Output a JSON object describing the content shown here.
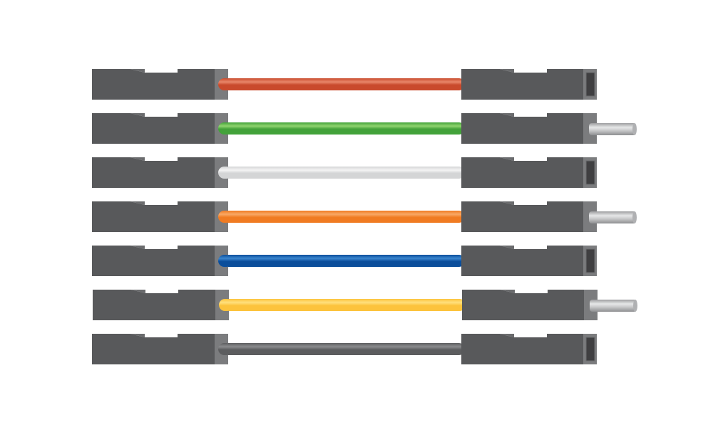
{
  "colors": {
    "housing": "#58595b",
    "cap": "#7b7c7e",
    "socket": "#3f3f41",
    "pin": "#c4c5c7"
  },
  "jumpers": [
    {
      "wire_color": "#c94a2c",
      "highlight": "#e8876a",
      "left_end": "female",
      "right_end": "female"
    },
    {
      "wire_color": "#43a23a",
      "highlight": "#8fd46e",
      "left_end": "female",
      "right_end": "male"
    },
    {
      "wire_color": "#d4d5d6",
      "highlight": "#f4f4f4",
      "left_end": "female",
      "right_end": "female"
    },
    {
      "wire_color": "#f07b22",
      "highlight": "#f9a865",
      "left_end": "female",
      "right_end": "male"
    },
    {
      "wire_color": "#0b4e9b",
      "highlight": "#3a86cf",
      "left_end": "female",
      "right_end": "female"
    },
    {
      "wire_color": "#fcc33c",
      "highlight": "#ffe07d",
      "left_end": "female",
      "right_end": "male"
    },
    {
      "wire_color": "#5c5d5f",
      "highlight": "#8a8b8d",
      "left_end": "female",
      "right_end": "female"
    }
  ]
}
